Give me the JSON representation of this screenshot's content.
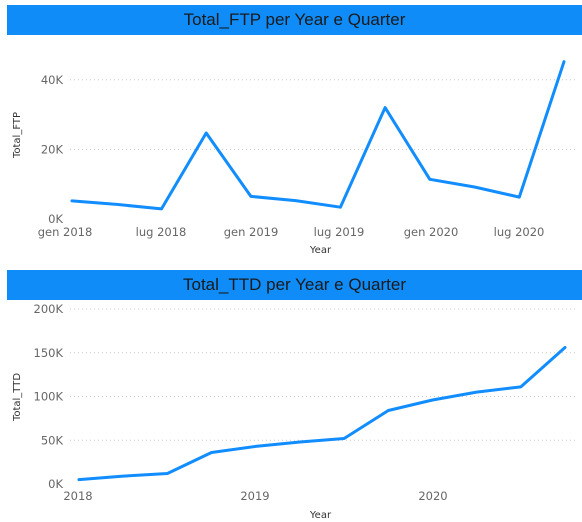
{
  "chart_data": [
    {
      "type": "line",
      "title": "Total_FTP per Year e Quarter",
      "xlabel": "Year",
      "ylabel": "Total_FTP",
      "x_ticks": [
        "gen 2018",
        "lug 2018",
        "gen 2019",
        "lug 2019",
        "gen 2020",
        "lug 2020"
      ],
      "y_ticks": [
        "0K",
        "20K",
        "40K"
      ],
      "ylim": [
        0,
        50000
      ],
      "grid": "horizontal dotted",
      "series": [
        {
          "color": "#118dff",
          "x": [
            "2018 Q1",
            "2018 Q2",
            "2018 Q3",
            "2018 Q4",
            "2019 Q1",
            "2019 Q2",
            "2019 Q3",
            "2019 Q4",
            "2020 Q1",
            "2020 Q2",
            "2020 Q3",
            "2020 Q4"
          ],
          "values": [
            5200,
            4200,
            2900,
            24700,
            6500,
            5300,
            3400,
            32000,
            11400,
            9200,
            6300,
            45200
          ]
        }
      ]
    },
    {
      "type": "line",
      "title": "Total_TTD per Year e Quarter",
      "xlabel": "Year",
      "ylabel": "Total_TTD",
      "x_ticks": [
        "2018",
        "2019",
        "2020"
      ],
      "y_ticks": [
        "0K",
        "50K",
        "100K",
        "150K",
        "200K"
      ],
      "ylim": [
        0,
        200000
      ],
      "grid": "horizontal dotted",
      "series": [
        {
          "color": "#118dff",
          "x": [
            "2018 Q1",
            "2018 Q2",
            "2018 Q3",
            "2018 Q4",
            "2019 Q1",
            "2019 Q2",
            "2019 Q3",
            "2019 Q4",
            "2020 Q1",
            "2020 Q2",
            "2020 Q3",
            "2020 Q4"
          ],
          "values": [
            5000,
            9000,
            12000,
            36000,
            43000,
            48000,
            52000,
            84000,
            96000,
            105000,
            111000,
            156000
          ]
        }
      ]
    }
  ]
}
